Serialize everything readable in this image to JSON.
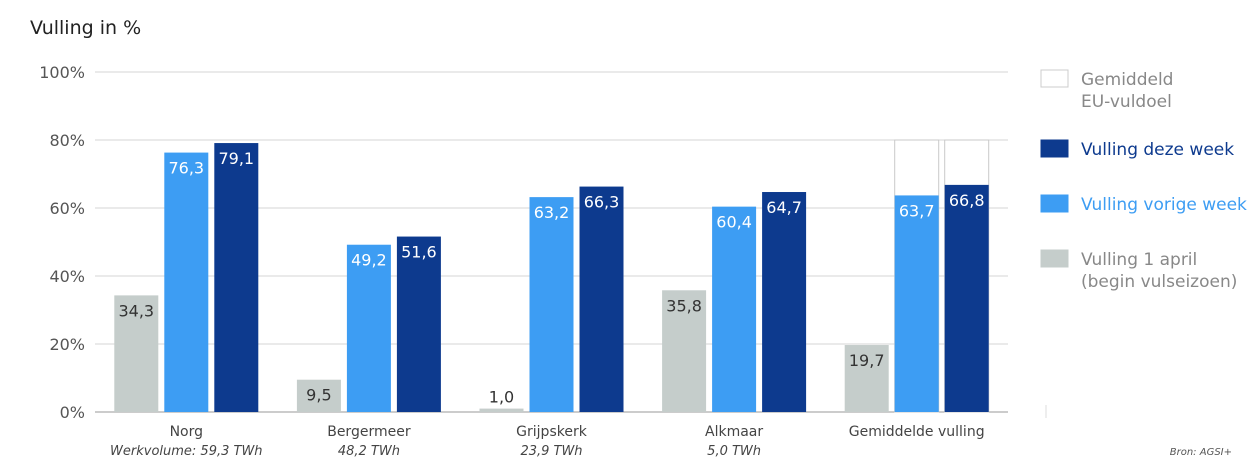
{
  "chart_data": {
    "type": "bar",
    "title": "",
    "ylabel": "Vulling in %",
    "ylim": [
      0,
      100
    ],
    "yticks": [
      "0%",
      "20%",
      "40%",
      "60%",
      "80%",
      "100%"
    ],
    "categories": [
      "Norg",
      "Bergermeer",
      "Grijpskerk",
      "Alkmaar",
      "Gemiddelde vulling"
    ],
    "subcategories": [
      "Werkvolume: 59,3 TWh",
      "48,2 TWh",
      "23,9 TWh",
      "5,0 TWh",
      ""
    ],
    "series": [
      {
        "name": "Vulling 1 april (begin vulseizoen)",
        "color": "#c5cdcb",
        "text_color": "#333333",
        "values": [
          34.3,
          9.5,
          1.0,
          35.8,
          19.7
        ],
        "labels": [
          "34,3",
          "9,5",
          "1,0",
          "35,8",
          "19,7"
        ]
      },
      {
        "name": "Vulling vorige week",
        "color": "#3d9df3",
        "text_color": "#ffffff",
        "values": [
          76.3,
          49.2,
          63.2,
          60.4,
          63.7
        ],
        "labels": [
          "76,3",
          "49,2",
          "63,2",
          "60,4",
          "63,7"
        ]
      },
      {
        "name": "Vulling deze week",
        "color": "#0d3a8e",
        "text_color": "#ffffff",
        "values": [
          79.1,
          51.6,
          66.3,
          64.7,
          66.8
        ],
        "labels": [
          "79,1",
          "51,6",
          "66,3",
          "64,7",
          "66,8"
        ]
      }
    ],
    "eu_target": {
      "name": "Gemiddeld EU-vuldoel",
      "category_index": 4,
      "value": 80
    },
    "legend": [
      {
        "key": "eu",
        "lines": [
          "Gemiddeld",
          "EU-vuldoel"
        ],
        "swatch": "#ffffff",
        "border": "#cccccc",
        "text_color": "#888888"
      },
      {
        "key": "deze",
        "lines": [
          "Vulling deze week"
        ],
        "swatch": "#0d3a8e",
        "border": "#0d3a8e",
        "text_color": "#0d3a8e"
      },
      {
        "key": "vorige",
        "lines": [
          "Vulling vorige week"
        ],
        "swatch": "#3d9df3",
        "border": "#3d9df3",
        "text_color": "#3d9df3"
      },
      {
        "key": "april",
        "lines": [
          "Vulling 1 april",
          "(begin vulseizoen)"
        ],
        "swatch": "#c5cdcb",
        "border": "#c5cdcb",
        "text_color": "#888888"
      }
    ],
    "legend_position": "right",
    "grid": true,
    "source": "Bron: AGSI+"
  }
}
